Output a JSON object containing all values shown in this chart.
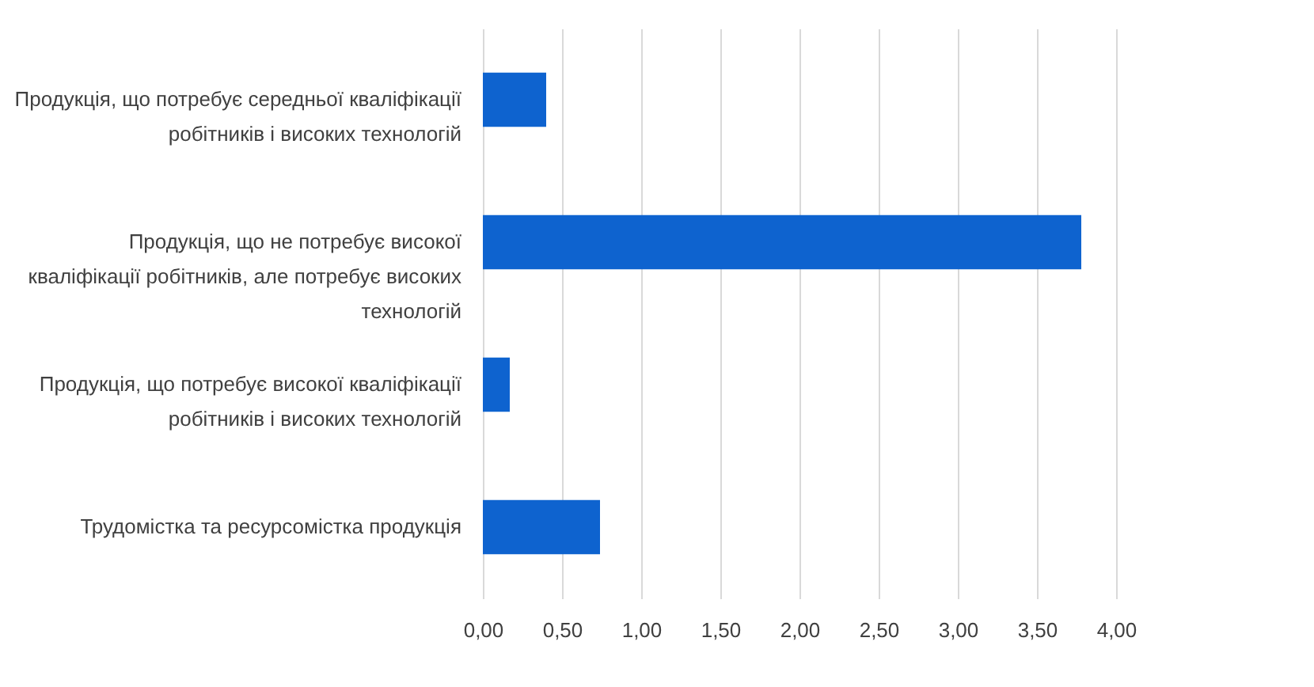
{
  "chart_data": {
    "type": "bar",
    "orientation": "horizontal",
    "categories": [
      "Продукція, що потребує середньої кваліфікації робітників і високих технологій",
      "Продукція, що не потребує високої кваліфікації робітників, але потребує високих технологій",
      "Продукція, що потребує високої кваліфікації робітників і високих технологій",
      "Трудомістка та ресурсомістка продукція"
    ],
    "values": [
      0.4,
      3.78,
      0.17,
      0.74
    ],
    "color": "#0e63cf",
    "xlim": [
      0,
      4
    ],
    "xticks": [
      {
        "value": 0,
        "label": "0,00"
      },
      {
        "value": 0.5,
        "label": "0,50"
      },
      {
        "value": 1,
        "label": "1,00"
      },
      {
        "value": 1.5,
        "label": "1,50"
      },
      {
        "value": 2,
        "label": "2,00"
      },
      {
        "value": 2.5,
        "label": "2,50"
      },
      {
        "value": 3,
        "label": "3,00"
      },
      {
        "value": 3.5,
        "label": "3,50"
      },
      {
        "value": 4,
        "label": "4,00"
      }
    ],
    "grid": "x"
  }
}
